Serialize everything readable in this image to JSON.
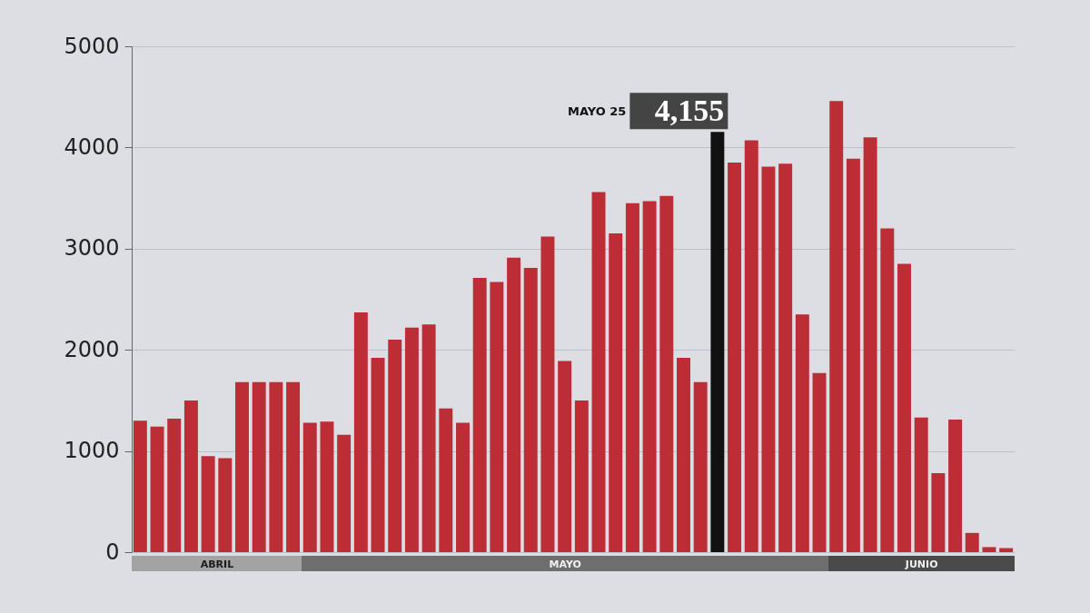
{
  "chart_data": {
    "type": "bar",
    "x": [
      "--04-21",
      "--04-22",
      "--04-23",
      "--04-24",
      "--04-25",
      "--04-26",
      "--04-27",
      "--04-28",
      "--04-29",
      "--04-30",
      "--05-01",
      "--05-02",
      "--05-03",
      "--05-04",
      "--05-05",
      "--05-06",
      "--05-07",
      "--05-08",
      "--05-09",
      "--05-10",
      "--05-11",
      "--05-12",
      "--05-13",
      "--05-14",
      "--05-15",
      "--05-16",
      "--05-17",
      "--05-18",
      "--05-19",
      "--05-20",
      "--05-21",
      "--05-22",
      "--05-23",
      "--05-24",
      "--05-25",
      "--05-26",
      "--05-27",
      "--05-28",
      "--05-29",
      "--05-30",
      "--05-31",
      "--06-01",
      "--06-02",
      "--06-03",
      "--06-04",
      "--06-05",
      "--06-06",
      "--06-07",
      "--06-08",
      "--06-09",
      "--06-10",
      "--06-11"
    ],
    "values": [
      1300,
      1240,
      1320,
      1500,
      950,
      930,
      1680,
      1680,
      1680,
      1680,
      1280,
      1290,
      1160,
      2370,
      1920,
      2100,
      2220,
      2250,
      1420,
      1280,
      2710,
      2670,
      2910,
      2810,
      3120,
      1890,
      1500,
      3560,
      3150,
      3450,
      3470,
      3520,
      1920,
      1680,
      4155,
      3850,
      4070,
      3810,
      3840,
      2350,
      1770,
      4460,
      3890,
      4100,
      3200,
      2850,
      1330,
      780,
      1310,
      190,
      50,
      40
    ],
    "colors": [
      "#bd2d36",
      "#bd2d36",
      "#bd2d36",
      "#bd2d36",
      "#bd2d36",
      "#bd2d36",
      "#bd2d36",
      "#bd2d36",
      "#bd2d36",
      "#bd2d36",
      "#bd2d36",
      "#bd2d36",
      "#bd2d36",
      "#bd2d36",
      "#bd2d36",
      "#bd2d36",
      "#bd2d36",
      "#bd2d36",
      "#bd2d36",
      "#bd2d36",
      "#bd2d36",
      "#bd2d36",
      "#bd2d36",
      "#bd2d36",
      "#bd2d36",
      "#bd2d36",
      "#bd2d36",
      "#bd2d36",
      "#bd2d36",
      "#bd2d36",
      "#bd2d36",
      "#bd2d36",
      "#bd2d36",
      "#bd2d36",
      "#111111",
      "#bd2d36",
      "#bd2d36",
      "#bd2d36",
      "#bd2d36",
      "#bd2d36",
      "#bd2d36",
      "#bd2d36",
      "#bd2d36",
      "#bd2d36",
      "#bd2d36",
      "#bd2d36",
      "#bd2d36",
      "#bd2d36",
      "#bd2d36",
      "#bd2d36",
      "#bd2d36",
      "#bd2d36"
    ],
    "value_labels": [
      null,
      null,
      null,
      null,
      null,
      null,
      null,
      null,
      null,
      null,
      null,
      null,
      null,
      null,
      null,
      null,
      null,
      null,
      null,
      null,
      null,
      null,
      null,
      null,
      null,
      null,
      null,
      null,
      null,
      null,
      null,
      null,
      null,
      null,
      "4,155",
      null,
      null,
      null,
      null,
      null,
      null,
      null,
      null,
      null,
      null,
      null,
      null,
      null,
      null,
      null,
      null,
      null
    ],
    "ylim": [
      0,
      5000
    ],
    "yticks": [
      0,
      1000,
      2000,
      3000,
      4000,
      5000
    ],
    "grid": "y",
    "xlim": [
      "--04-20T12:00",
      "--06-11T12:00"
    ],
    "xticks": [
      {
        "value": "--04-25T12:00",
        "label": "ABRIL"
      },
      {
        "value": "--05-16",
        "label": "MAYO"
      },
      {
        "value": "--06-06",
        "label": "JUNIO"
      }
    ],
    "annotations": [
      "MAYO 25"
    ]
  }
}
